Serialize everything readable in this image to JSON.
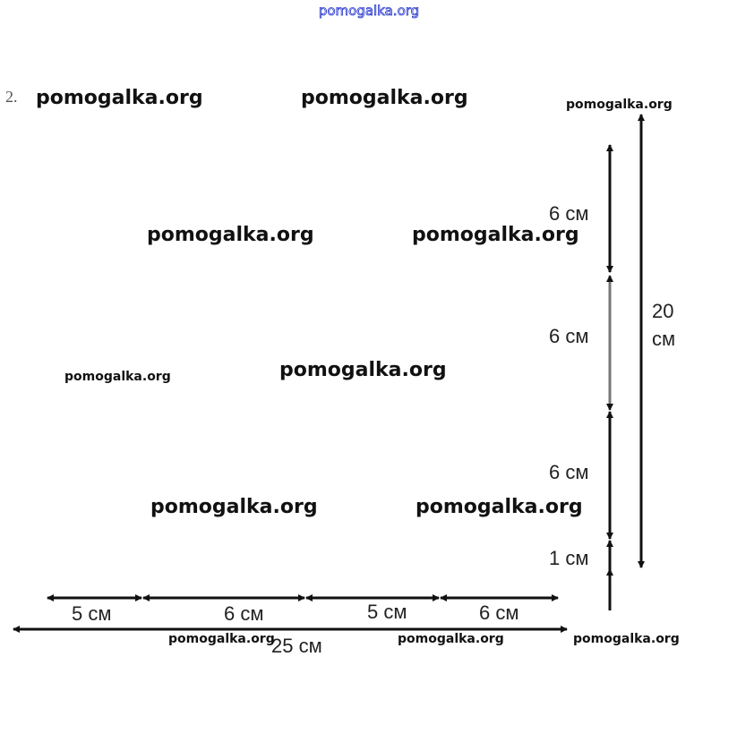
{
  "header_watermark": "pomogalka.org",
  "problem_number": "2.",
  "watermarks": [
    "pomogalka.org",
    "pomogalka.org",
    "pomogalka.org",
    "pomogalka.org",
    "pomogalka.org",
    "pomogalka.org",
    "pomogalka.org",
    "pomogalka.org",
    "pomogalka.org",
    "pomogalka.org",
    "pomogalka.org",
    "pomogalka.org"
  ],
  "vertical_segments": [
    "6 см",
    "6 см",
    "6 см",
    "1 см"
  ],
  "vertical_total": [
    "20",
    "см"
  ],
  "horizontal_segments": [
    "5 см",
    "6 см",
    "5 см",
    "6 см"
  ],
  "horizontal_total": "25 см"
}
